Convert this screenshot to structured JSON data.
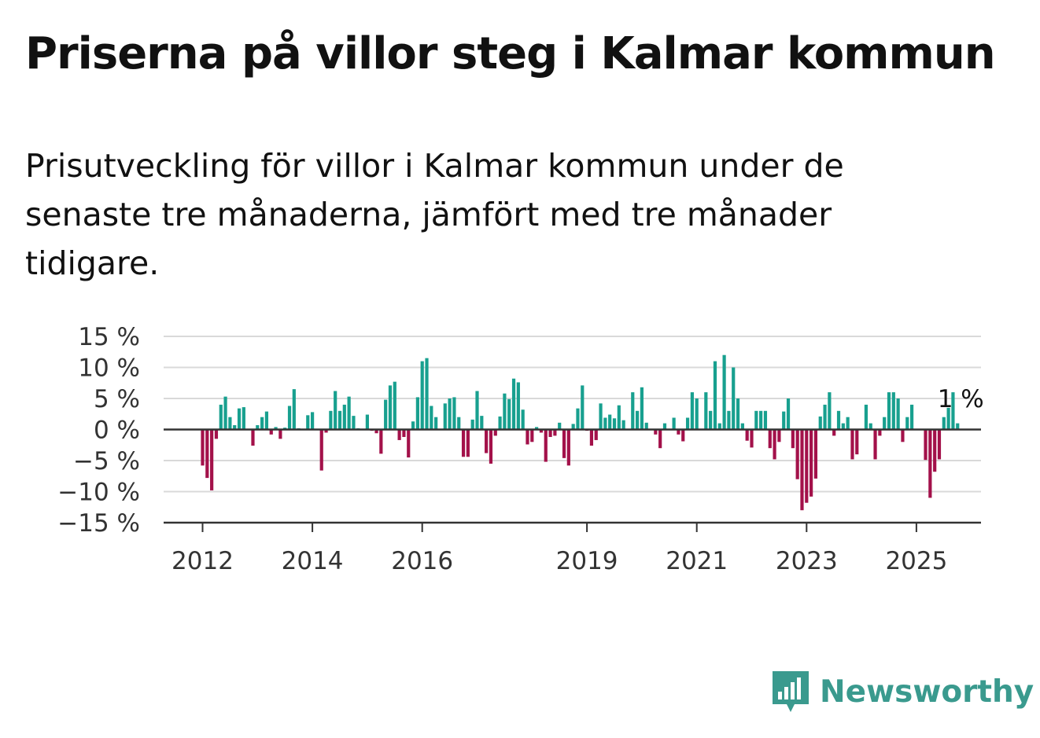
{
  "title": "Priserna på villor steg i Kalmar kommun",
  "subtitle": "Prisutveckling för villor i Kalmar kommun under de senaste tre månaderna, jämfört med tre månader tidigare.",
  "brand": {
    "name": "Newsworthy",
    "icon": "newsworthy-logo-icon",
    "color": "#3a9a8e"
  },
  "colors": {
    "positive": "#18a08f",
    "negative": "#a3114a",
    "grid": "#d9d9d9",
    "axis": "#333333"
  },
  "chart_data": {
    "type": "bar",
    "title": "Priserna på villor steg i Kalmar kommun",
    "xlabel": "",
    "ylabel": "",
    "ylim": [
      -15,
      15
    ],
    "y_ticks": [
      15,
      10,
      5,
      0,
      -5,
      -10,
      -15
    ],
    "y_tick_labels": [
      "15 %",
      "10 %",
      "5 %",
      "0 %",
      "−5 %",
      "−10 %",
      "−15 %"
    ],
    "x_ticks": [
      2012,
      2014,
      2016,
      2019,
      2021,
      2023,
      2025
    ],
    "x_tick_labels": [
      "2012",
      "2014",
      "2016",
      "2019",
      "2021",
      "2023",
      "2025"
    ],
    "start": "2012-01",
    "frequency": "monthly",
    "annotation": {
      "text": "1 %",
      "at": "last"
    },
    "grid": true,
    "values": [
      -5.8,
      -7.8,
      -9.8,
      -1.5,
      4.0,
      5.3,
      2.0,
      0.7,
      3.4,
      3.6,
      -0.1,
      -2.6,
      0.7,
      2.0,
      2.9,
      -0.8,
      0.4,
      -1.5,
      0.3,
      3.8,
      6.5,
      0.2,
      -0.1,
      2.3,
      2.8,
      -0.1,
      -6.6,
      -0.5,
      3.0,
      6.2,
      3.0,
      4.0,
      5.3,
      2.2,
      0.2,
      -0.1,
      2.4,
      -0.2,
      -0.6,
      -3.9,
      4.8,
      7.1,
      7.7,
      -1.7,
      -1.2,
      -4.5,
      1.3,
      5.2,
      11.0,
      11.5,
      3.8,
      2.0,
      -0.1,
      4.2,
      5.0,
      5.2,
      2.0,
      -4.4,
      -4.4,
      1.6,
      6.2,
      2.2,
      -3.8,
      -5.5,
      -1.0,
      2.1,
      5.8,
      4.9,
      8.2,
      7.6,
      3.2,
      -2.4,
      -2.0,
      0.4,
      -0.5,
      -5.2,
      -1.2,
      -1.0,
      1.1,
      -4.6,
      -5.8,
      0.9,
      3.4,
      7.1,
      -0.2,
      -2.6,
      -1.7,
      4.2,
      1.9,
      2.4,
      1.8,
      3.9,
      1.5,
      -0.1,
      6.0,
      3.0,
      6.8,
      1.1,
      -0.1,
      -0.8,
      -3.0,
      1.0,
      -0.1,
      1.9,
      -0.8,
      -1.9,
      1.9,
      6.0,
      5.0,
      -0.1,
      6.0,
      3.0,
      11.0,
      1.0,
      12.0,
      3.0,
      10.0,
      5.0,
      1.0,
      -1.8,
      -2.9,
      3.0,
      3.0,
      3.0,
      -3.0,
      -4.8,
      -2.0,
      2.9,
      5.0,
      -3.0,
      -8.0,
      -13.0,
      -11.8,
      -10.8,
      -7.9,
      2.1,
      4.0,
      6.0,
      -1.0,
      3.0,
      1.0,
      2.0,
      -4.8,
      -4.0,
      0.1,
      4.0,
      1.0,
      -4.8,
      -1.0,
      2.0,
      6.0,
      6.0,
      5.0,
      -2.0,
      2.0,
      4.0,
      0.1,
      0.1,
      -4.9,
      -11.0,
      -6.8,
      -4.8,
      2.0,
      3.5,
      6.0,
      1.0
    ]
  }
}
